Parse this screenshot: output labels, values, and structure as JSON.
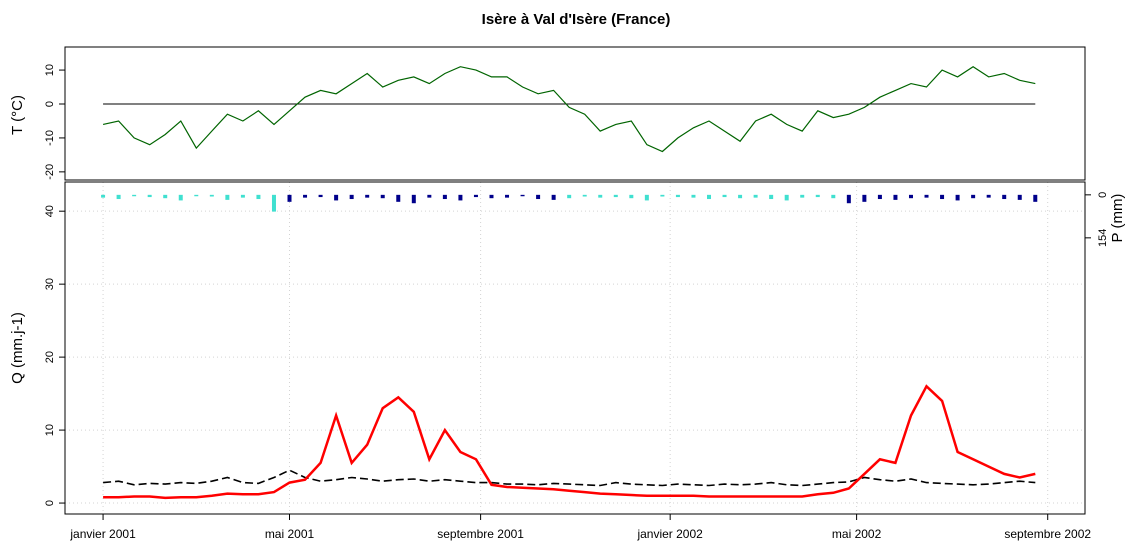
{
  "chart_data": [
    {
      "type": "line",
      "title": "Isère à Val d'Isère (France)",
      "ylabel": "T (°C)",
      "x": [
        0,
        10,
        20,
        30,
        40,
        50,
        60,
        70,
        80,
        90,
        100,
        110,
        120,
        130,
        140,
        150,
        160,
        170,
        180,
        190,
        200,
        210,
        220,
        230,
        240,
        250,
        260,
        270,
        280,
        290,
        300,
        310,
        320,
        330,
        340,
        350,
        360,
        370,
        380,
        390,
        400,
        410,
        420,
        430,
        440,
        450,
        460,
        470,
        480,
        490,
        500,
        510,
        520,
        530,
        540,
        550,
        560,
        570,
        580,
        590,
        600
      ],
      "xlim": [
        -24.5,
        632
      ],
      "ylim": [
        -22.4,
        16.8
      ],
      "yticks": [
        -20,
        -10,
        0,
        10
      ],
      "reference_line": 0,
      "series": [
        {
          "color": "#006400",
          "values": [
            -6,
            -5,
            -10,
            -12,
            -9,
            -5,
            -13,
            -8,
            -3,
            -5,
            -2,
            -6,
            -2,
            2,
            4,
            3,
            6,
            9,
            5,
            7,
            8,
            6,
            9,
            11,
            10,
            8,
            8,
            5,
            3,
            4,
            -1,
            -3,
            -8,
            -6,
            -5,
            -12,
            -14,
            -10,
            -7,
            -5,
            -8,
            -11,
            -5,
            -3,
            -6,
            -8,
            -2,
            -4,
            -3,
            -1,
            2,
            4,
            6,
            5,
            10,
            8,
            11,
            8,
            9,
            7,
            6
          ]
        }
      ]
    },
    {
      "type": "line",
      "ylabel": "Q (mm.j-1)",
      "y2label": "P (mm)",
      "x": [
        0,
        10,
        20,
        30,
        40,
        50,
        60,
        70,
        80,
        90,
        100,
        110,
        120,
        130,
        140,
        150,
        160,
        170,
        180,
        190,
        200,
        210,
        220,
        230,
        240,
        250,
        260,
        270,
        280,
        290,
        300,
        310,
        320,
        330,
        340,
        350,
        360,
        370,
        380,
        390,
        400,
        410,
        420,
        430,
        440,
        450,
        460,
        470,
        480,
        490,
        500,
        510,
        520,
        530,
        540,
        550,
        560,
        570,
        580,
        590,
        600
      ],
      "xlim": [
        -24.5,
        632
      ],
      "xticks": [
        {
          "value": 0,
          "label": "janvier 2001"
        },
        {
          "value": 120,
          "label": "mai 2001"
        },
        {
          "value": 243,
          "label": "septembre 2001"
        },
        {
          "value": 365,
          "label": "janvier 2002"
        },
        {
          "value": 485,
          "label": "mai 2002"
        },
        {
          "value": 608,
          "label": "septembre 2002"
        }
      ],
      "ylim": [
        -1.5,
        44
      ],
      "yticks": [
        0,
        10,
        20,
        30,
        40
      ],
      "y2lim": [
        1143,
        -46
      ],
      "y2ticks": [
        0,
        154
      ],
      "grid": true,
      "series": [
        {
          "color": "#000000",
          "dashed": true,
          "values": [
            2.8,
            3.0,
            2.5,
            2.7,
            2.6,
            2.8,
            2.7,
            3.0,
            3.5,
            2.8,
            2.7,
            3.5,
            4.5,
            3.5,
            3.0,
            3.2,
            3.5,
            3.3,
            3.0,
            3.2,
            3.3,
            3.0,
            3.2,
            3.0,
            2.8,
            2.8,
            2.6,
            2.6,
            2.5,
            2.7,
            2.6,
            2.5,
            2.4,
            2.8,
            2.6,
            2.5,
            2.4,
            2.6,
            2.5,
            2.4,
            2.6,
            2.5,
            2.6,
            2.8,
            2.5,
            2.4,
            2.6,
            2.8,
            2.9,
            3.5,
            3.2,
            3.0,
            3.3,
            2.8,
            2.7,
            2.6,
            2.5,
            2.6,
            2.8,
            3.0,
            2.8
          ]
        },
        {
          "color": "#ff0000",
          "values": [
            0.8,
            0.8,
            0.9,
            0.9,
            0.7,
            0.8,
            0.8,
            1.0,
            1.3,
            1.2,
            1.2,
            1.5,
            2.8,
            3.2,
            5.5,
            12,
            5.5,
            8,
            13,
            14.5,
            12.5,
            6,
            10,
            7,
            6,
            2.5,
            2.2,
            2.1,
            2.0,
            1.9,
            1.7,
            1.5,
            1.3,
            1.2,
            1.1,
            1.0,
            1.0,
            1.0,
            1.0,
            0.9,
            0.9,
            0.9,
            0.9,
            0.9,
            0.9,
            0.9,
            1.2,
            1.4,
            2.0,
            4.0,
            6.0,
            5.5,
            12,
            16,
            14,
            7,
            6,
            5,
            4,
            3.5,
            4.0
          ]
        },
        {
          "type": "bar",
          "axis": "y2",
          "color": "#40e0d0",
          "values": [
            10,
            15,
            5,
            8,
            12,
            20,
            5,
            6,
            18,
            10,
            15,
            60,
            0,
            0,
            0,
            0,
            0,
            0,
            0,
            0,
            0,
            0,
            0,
            0,
            0,
            0,
            0,
            0,
            0,
            0,
            12,
            6,
            10,
            8,
            12,
            20,
            6,
            8,
            10,
            15,
            8,
            12,
            10,
            15,
            20,
            10,
            8,
            12,
            0,
            0,
            0,
            0,
            0,
            0,
            0,
            0,
            0,
            0,
            0,
            0,
            0
          ]
        },
        {
          "type": "bar",
          "axis": "y2",
          "color": "#00008b",
          "values": [
            0,
            0,
            0,
            0,
            0,
            0,
            0,
            0,
            0,
            0,
            0,
            0,
            25,
            10,
            8,
            20,
            15,
            10,
            12,
            25,
            30,
            10,
            15,
            20,
            8,
            12,
            10,
            5,
            15,
            18,
            0,
            0,
            0,
            0,
            0,
            0,
            0,
            0,
            0,
            0,
            0,
            0,
            0,
            0,
            0,
            0,
            0,
            0,
            30,
            25,
            15,
            18,
            12,
            10,
            15,
            20,
            12,
            10,
            15,
            18,
            25
          ]
        }
      ]
    }
  ]
}
